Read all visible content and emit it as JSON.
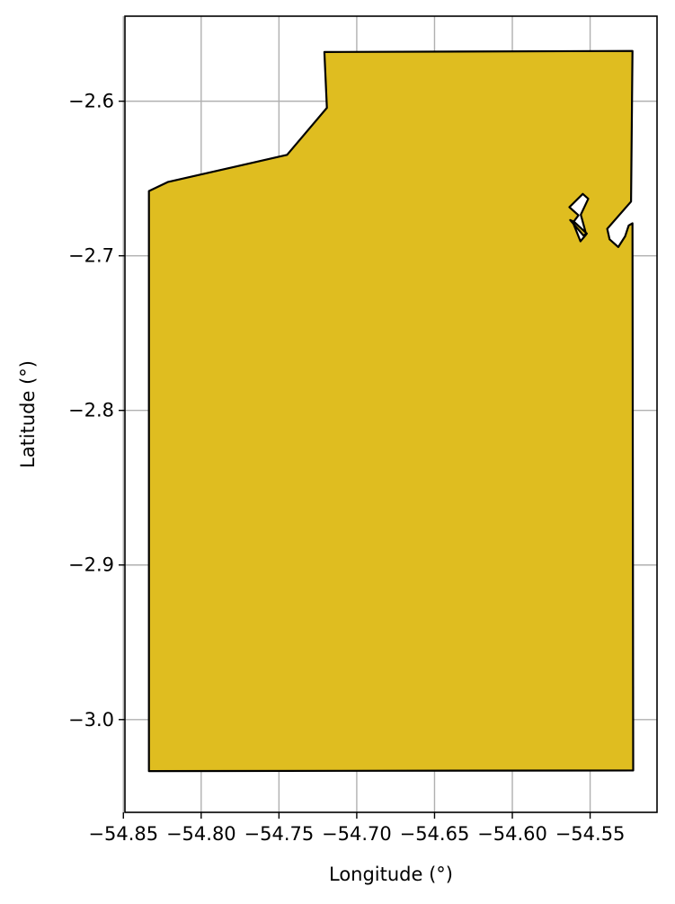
{
  "chart_data": {
    "type": "map",
    "xlabel": "Longitude (°)",
    "ylabel": "Latitude (°)",
    "xlim": [
      -54.849,
      -54.507
    ],
    "ylim": [
      -3.06,
      -2.545
    ],
    "grid": true,
    "x_ticks": [
      {
        "value": -54.85,
        "label": "−54.85"
      },
      {
        "value": -54.8,
        "label": "−54.80"
      },
      {
        "value": -54.75,
        "label": "−54.75"
      },
      {
        "value": -54.7,
        "label": "−54.70"
      },
      {
        "value": -54.65,
        "label": "−54.65"
      },
      {
        "value": -54.6,
        "label": "−54.60"
      },
      {
        "value": -54.55,
        "label": "−54.55"
      }
    ],
    "y_ticks": [
      {
        "value": -2.6,
        "label": "−2.6"
      },
      {
        "value": -2.7,
        "label": "−2.7"
      },
      {
        "value": -2.8,
        "label": "−2.8"
      },
      {
        "value": -2.9,
        "label": "−2.9"
      },
      {
        "value": -3.0,
        "label": "−3.0"
      }
    ],
    "fill_color": "#DFBD20",
    "edge_color": "#000000",
    "grid_color": "#b0b0b0",
    "polygon": {
      "outer": [
        [
          -54.8336,
          -3.0333
        ],
        [
          -54.5223,
          -3.0329
        ],
        [
          -54.5228,
          -2.679
        ],
        [
          -54.5252,
          -2.6804
        ],
        [
          -54.5275,
          -2.6874
        ],
        [
          -54.5319,
          -2.6943
        ],
        [
          -54.5375,
          -2.6893
        ],
        [
          -54.539,
          -2.6825
        ],
        [
          -54.5237,
          -2.6649
        ],
        [
          -54.5228,
          -2.5675
        ],
        [
          -54.7208,
          -2.5682
        ],
        [
          -54.7192,
          -2.6043
        ],
        [
          -54.7448,
          -2.6347
        ],
        [
          -54.8215,
          -2.6523
        ],
        [
          -54.8336,
          -2.6581
        ]
      ],
      "holes": [
        [
          [
            -54.5633,
            -2.6685
          ],
          [
            -54.5547,
            -2.66
          ],
          [
            -54.5512,
            -2.6631
          ],
          [
            -54.556,
            -2.6734
          ],
          [
            -54.5525,
            -2.6862
          ],
          [
            -54.5562,
            -2.6906
          ],
          [
            -54.561,
            -2.6785
          ],
          [
            -54.5575,
            -2.6738
          ]
        ],
        [
          [
            -54.5603,
            -2.678
          ],
          [
            -54.5628,
            -2.6769
          ],
          [
            -54.5543,
            -2.6868
          ],
          [
            -54.5521,
            -2.6856
          ]
        ]
      ]
    }
  }
}
